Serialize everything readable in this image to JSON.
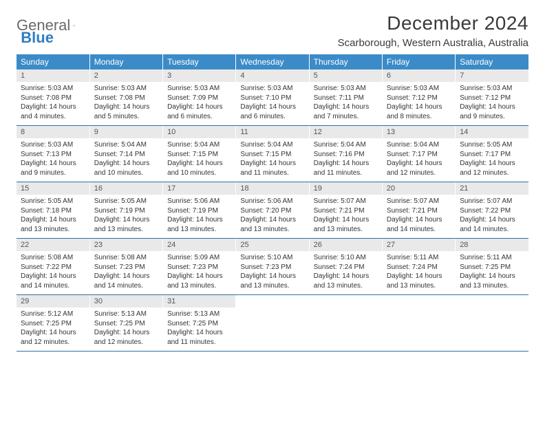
{
  "brand": {
    "part1": "General",
    "part2": "Blue"
  },
  "title": "December 2024",
  "location": "Scarborough, Western Australia, Australia",
  "colors": {
    "header_bg": "#3b8bc8",
    "header_text": "#ffffff",
    "daynum_bg": "#e9e9e9",
    "rule": "#2c6fa3",
    "brand_gray": "#6a6a6a",
    "brand_blue": "#2f7ec2"
  },
  "weekdays": [
    "Sunday",
    "Monday",
    "Tuesday",
    "Wednesday",
    "Thursday",
    "Friday",
    "Saturday"
  ],
  "weeks": [
    [
      {
        "n": "1",
        "sr": "5:03 AM",
        "ss": "7:08 PM",
        "dl": "14 hours and 4 minutes."
      },
      {
        "n": "2",
        "sr": "5:03 AM",
        "ss": "7:08 PM",
        "dl": "14 hours and 5 minutes."
      },
      {
        "n": "3",
        "sr": "5:03 AM",
        "ss": "7:09 PM",
        "dl": "14 hours and 6 minutes."
      },
      {
        "n": "4",
        "sr": "5:03 AM",
        "ss": "7:10 PM",
        "dl": "14 hours and 6 minutes."
      },
      {
        "n": "5",
        "sr": "5:03 AM",
        "ss": "7:11 PM",
        "dl": "14 hours and 7 minutes."
      },
      {
        "n": "6",
        "sr": "5:03 AM",
        "ss": "7:12 PM",
        "dl": "14 hours and 8 minutes."
      },
      {
        "n": "7",
        "sr": "5:03 AM",
        "ss": "7:12 PM",
        "dl": "14 hours and 9 minutes."
      }
    ],
    [
      {
        "n": "8",
        "sr": "5:03 AM",
        "ss": "7:13 PM",
        "dl": "14 hours and 9 minutes."
      },
      {
        "n": "9",
        "sr": "5:04 AM",
        "ss": "7:14 PM",
        "dl": "14 hours and 10 minutes."
      },
      {
        "n": "10",
        "sr": "5:04 AM",
        "ss": "7:15 PM",
        "dl": "14 hours and 10 minutes."
      },
      {
        "n": "11",
        "sr": "5:04 AM",
        "ss": "7:15 PM",
        "dl": "14 hours and 11 minutes."
      },
      {
        "n": "12",
        "sr": "5:04 AM",
        "ss": "7:16 PM",
        "dl": "14 hours and 11 minutes."
      },
      {
        "n": "13",
        "sr": "5:04 AM",
        "ss": "7:17 PM",
        "dl": "14 hours and 12 minutes."
      },
      {
        "n": "14",
        "sr": "5:05 AM",
        "ss": "7:17 PM",
        "dl": "14 hours and 12 minutes."
      }
    ],
    [
      {
        "n": "15",
        "sr": "5:05 AM",
        "ss": "7:18 PM",
        "dl": "14 hours and 13 minutes."
      },
      {
        "n": "16",
        "sr": "5:05 AM",
        "ss": "7:19 PM",
        "dl": "14 hours and 13 minutes."
      },
      {
        "n": "17",
        "sr": "5:06 AM",
        "ss": "7:19 PM",
        "dl": "14 hours and 13 minutes."
      },
      {
        "n": "18",
        "sr": "5:06 AM",
        "ss": "7:20 PM",
        "dl": "14 hours and 13 minutes."
      },
      {
        "n": "19",
        "sr": "5:07 AM",
        "ss": "7:21 PM",
        "dl": "14 hours and 13 minutes."
      },
      {
        "n": "20",
        "sr": "5:07 AM",
        "ss": "7:21 PM",
        "dl": "14 hours and 14 minutes."
      },
      {
        "n": "21",
        "sr": "5:07 AM",
        "ss": "7:22 PM",
        "dl": "14 hours and 14 minutes."
      }
    ],
    [
      {
        "n": "22",
        "sr": "5:08 AM",
        "ss": "7:22 PM",
        "dl": "14 hours and 14 minutes."
      },
      {
        "n": "23",
        "sr": "5:08 AM",
        "ss": "7:23 PM",
        "dl": "14 hours and 14 minutes."
      },
      {
        "n": "24",
        "sr": "5:09 AM",
        "ss": "7:23 PM",
        "dl": "14 hours and 13 minutes."
      },
      {
        "n": "25",
        "sr": "5:10 AM",
        "ss": "7:23 PM",
        "dl": "14 hours and 13 minutes."
      },
      {
        "n": "26",
        "sr": "5:10 AM",
        "ss": "7:24 PM",
        "dl": "14 hours and 13 minutes."
      },
      {
        "n": "27",
        "sr": "5:11 AM",
        "ss": "7:24 PM",
        "dl": "14 hours and 13 minutes."
      },
      {
        "n": "28",
        "sr": "5:11 AM",
        "ss": "7:25 PM",
        "dl": "14 hours and 13 minutes."
      }
    ],
    [
      {
        "n": "29",
        "sr": "5:12 AM",
        "ss": "7:25 PM",
        "dl": "14 hours and 12 minutes."
      },
      {
        "n": "30",
        "sr": "5:13 AM",
        "ss": "7:25 PM",
        "dl": "14 hours and 12 minutes."
      },
      {
        "n": "31",
        "sr": "5:13 AM",
        "ss": "7:25 PM",
        "dl": "14 hours and 11 minutes."
      },
      null,
      null,
      null,
      null
    ]
  ],
  "labels": {
    "sunrise": "Sunrise:",
    "sunset": "Sunset:",
    "daylight": "Daylight:"
  }
}
